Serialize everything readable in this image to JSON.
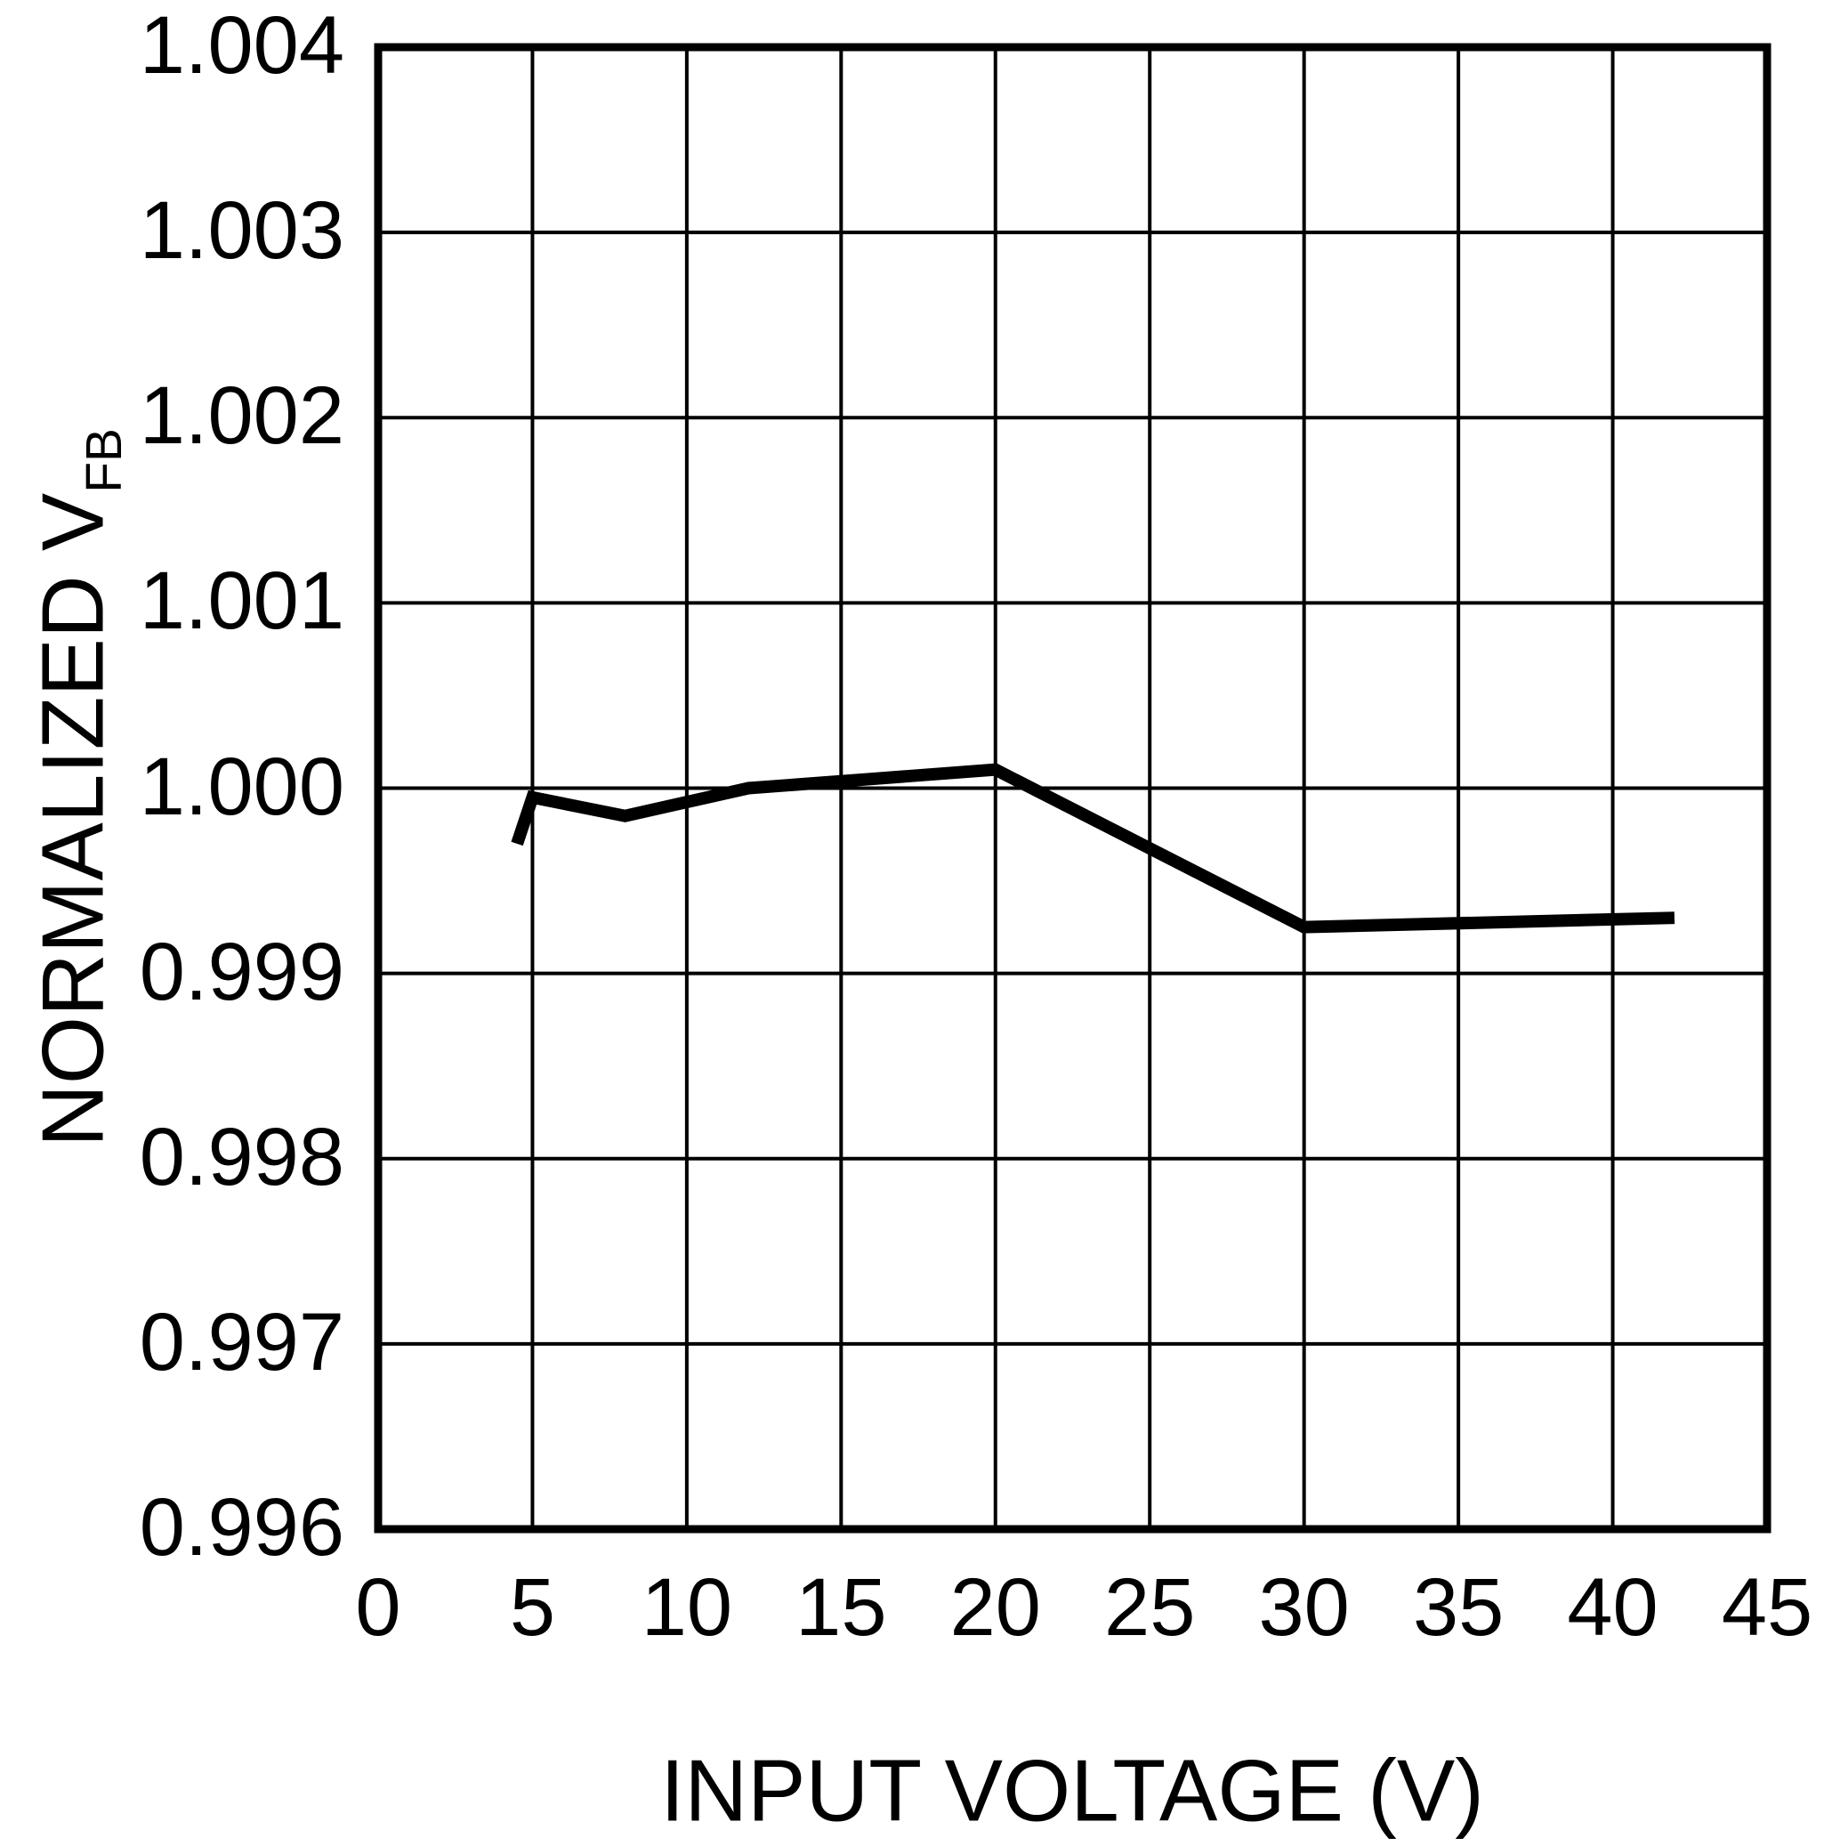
{
  "chart_data": {
    "type": "line",
    "title": "",
    "xlabel": "INPUT VOLTAGE (V)",
    "ylabel_main": "NORMALIZED V",
    "ylabel_sub": "FB",
    "xlim": [
      0,
      45
    ],
    "ylim": [
      0.996,
      1.004
    ],
    "x_ticks": [
      0,
      5,
      10,
      15,
      20,
      25,
      30,
      35,
      40,
      45
    ],
    "x_tick_labels": [
      "0",
      "5",
      "10",
      "15",
      "20",
      "25",
      "30",
      "35",
      "40",
      "45"
    ],
    "y_ticks": [
      0.996,
      0.997,
      0.998,
      0.999,
      1.0,
      1.001,
      1.002,
      1.003,
      1.004
    ],
    "y_tick_labels": [
      "0.996",
      "0.997",
      "0.998",
      "0.999",
      "1.000",
      "1.001",
      "1.002",
      "1.003",
      "1.004"
    ],
    "grid": true,
    "legend": false,
    "series": [
      {
        "name": "normalized-vfb",
        "x": [
          4.5,
          5,
          8,
          12,
          16,
          20,
          30,
          42
        ],
        "y": [
          0.9997,
          0.99995,
          0.99985,
          1.0,
          1.00005,
          1.0001,
          0.99925,
          0.9993
        ]
      }
    ],
    "line_color": "#000000",
    "grid_color": "#000000",
    "background": "#ffffff"
  }
}
